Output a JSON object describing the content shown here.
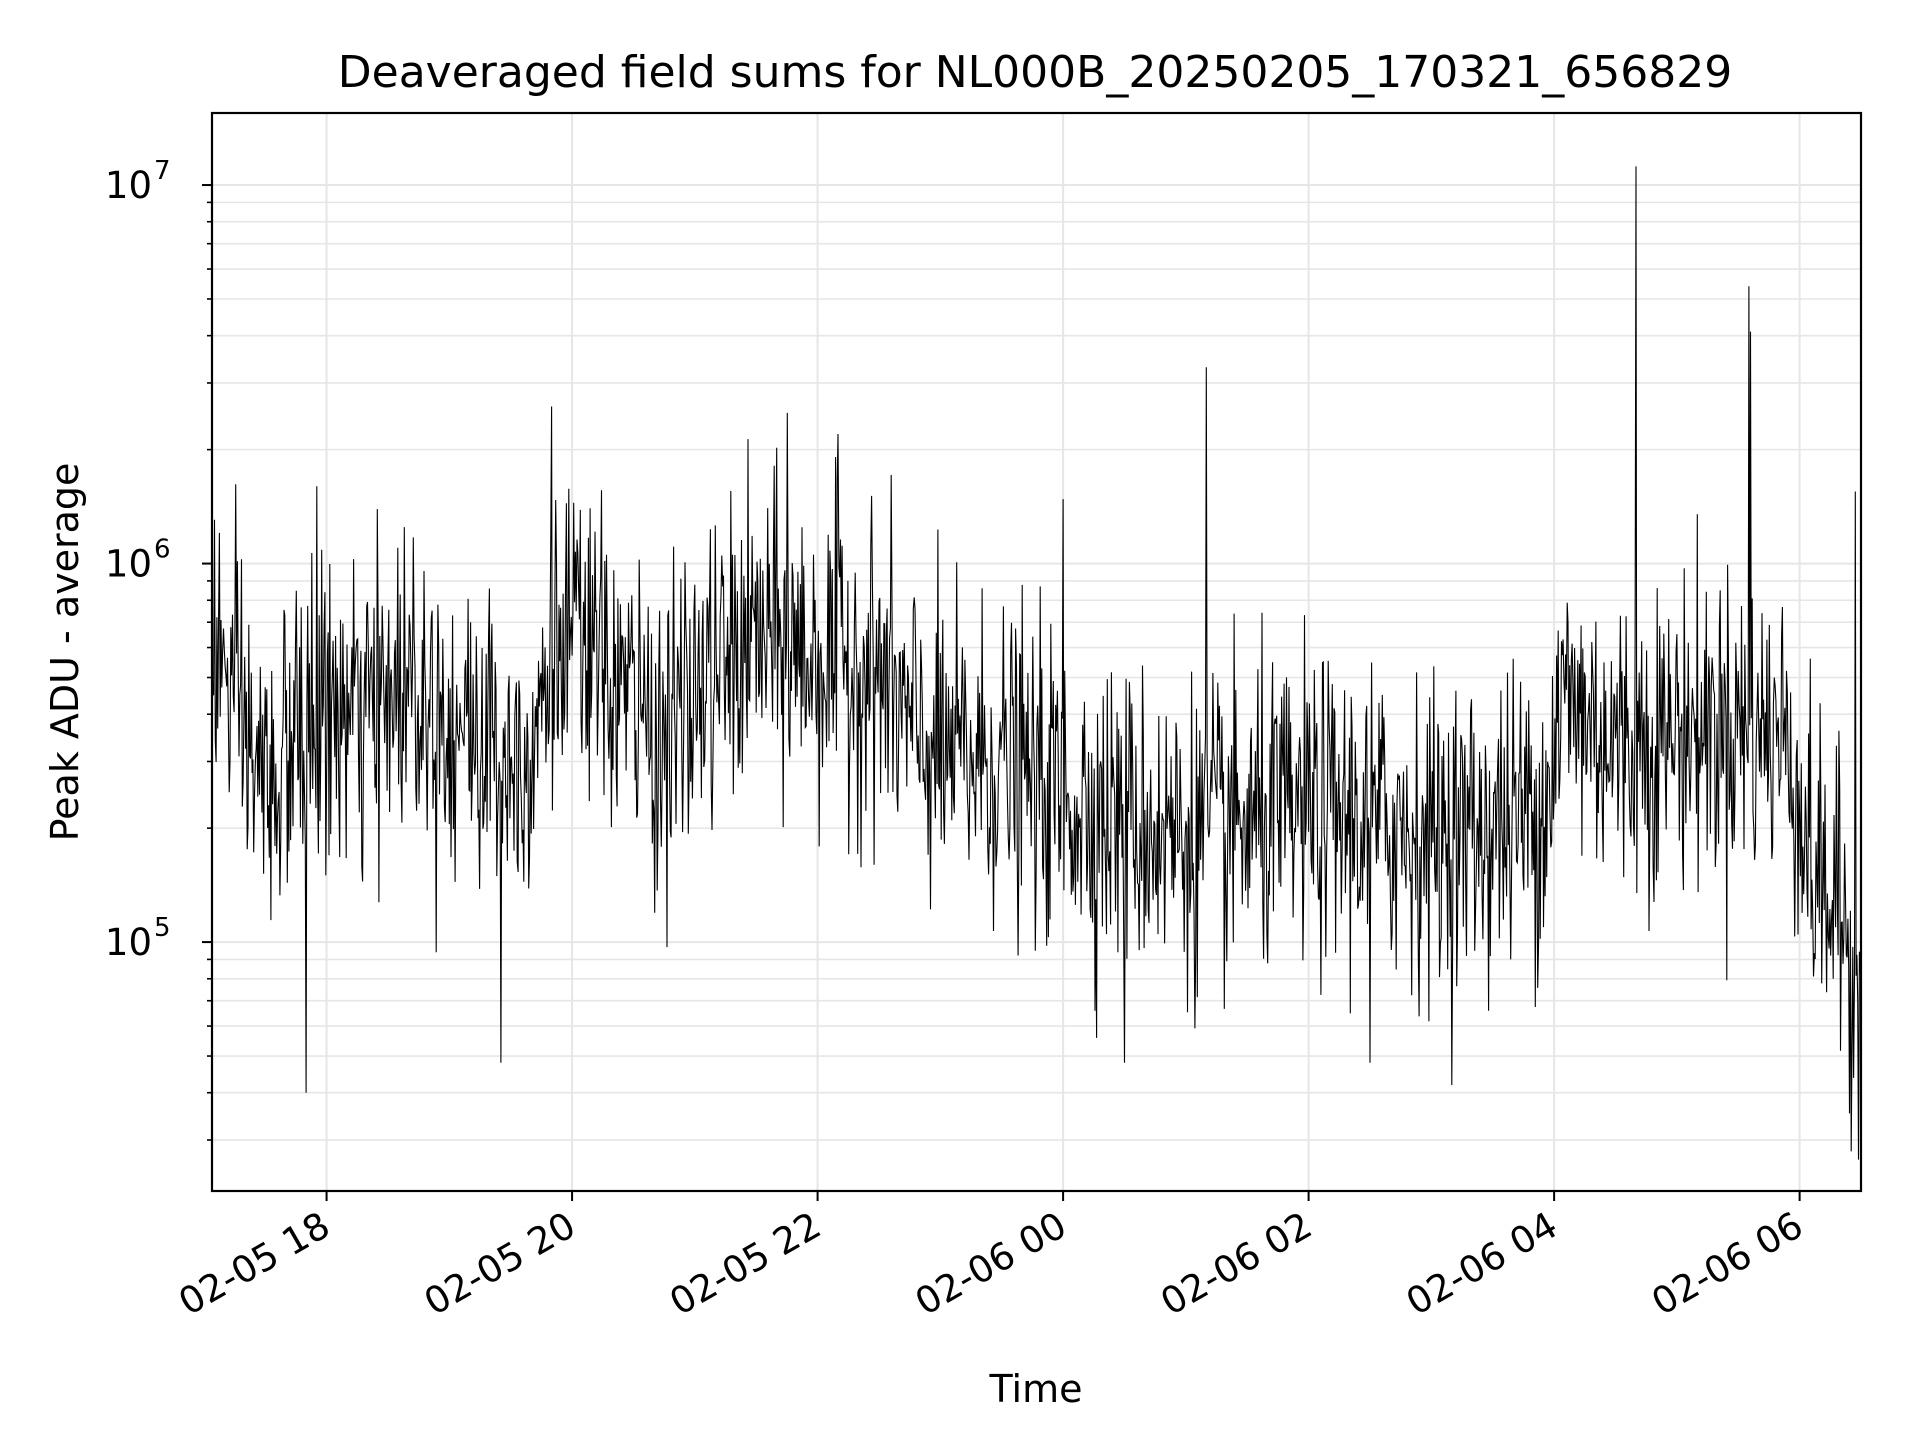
{
  "chart_data": {
    "type": "line",
    "title": "Deaveraged field sums for NL000B_20250205_170321_656829",
    "xlabel": "Time",
    "ylabel": "Peak ADU - average",
    "yscale": "log",
    "ylim": [
      22000,
      15500000
    ],
    "xlim": [
      "2025-02-05 17:04",
      "2025-02-06 06:30"
    ],
    "grid": true,
    "line_color": "#000000",
    "grid_color": "#e6e6e6",
    "x_ticks": [
      "2025-02-05 18:00",
      "2025-02-05 20:00",
      "2025-02-05 22:00",
      "2025-02-06 00:00",
      "2025-02-06 02:00",
      "2025-02-06 04:00",
      "2025-02-06 06:00"
    ],
    "x_tick_labels": [
      "02-05 18",
      "02-05 20",
      "02-05 22",
      "02-06 00",
      "02-06 02",
      "02-06 04",
      "02-06 06"
    ],
    "y_ticks": [
      100000,
      1000000,
      10000000
    ],
    "y_tick_labels": [
      {
        "base": "10",
        "exp": "5"
      },
      {
        "base": "10",
        "exp": "6"
      },
      {
        "base": "10",
        "exp": "7"
      }
    ],
    "series": [
      {
        "sample_interval_min": 0.4,
        "baseline": [
          [
            "2025-02-05 17:04",
            650000
          ],
          [
            "2025-02-05 17:15",
            420000
          ],
          [
            "2025-02-05 17:30",
            250000
          ],
          [
            "2025-02-05 17:45",
            330000
          ],
          [
            "2025-02-05 18:00",
            400000
          ],
          [
            "2025-02-05 18:20",
            380000
          ],
          [
            "2025-02-05 18:40",
            520000
          ],
          [
            "2025-02-05 19:00",
            380000
          ],
          [
            "2025-02-05 19:20",
            340000
          ],
          [
            "2025-02-05 19:35",
            290000
          ],
          [
            "2025-02-05 19:50",
            560000
          ],
          [
            "2025-02-05 20:00",
            640000
          ],
          [
            "2025-02-05 20:30",
            430000
          ],
          [
            "2025-02-05 20:45",
            330000
          ],
          [
            "2025-02-05 21:00",
            450000
          ],
          [
            "2025-02-05 21:30",
            640000
          ],
          [
            "2025-02-05 22:00",
            560000
          ],
          [
            "2025-02-05 22:30",
            520000
          ],
          [
            "2025-02-05 22:45",
            360000
          ],
          [
            "2025-02-05 23:00",
            310000
          ],
          [
            "2025-02-05 23:30",
            300000
          ],
          [
            "2025-02-06 00:00",
            240000
          ],
          [
            "2025-02-06 00:30",
            210000
          ],
          [
            "2025-02-06 01:00",
            190000
          ],
          [
            "2025-02-06 01:30",
            200000
          ],
          [
            "2025-02-06 02:00",
            220000
          ],
          [
            "2025-02-06 02:30",
            210000
          ],
          [
            "2025-02-06 03:00",
            190000
          ],
          [
            "2025-02-06 03:30",
            200000
          ],
          [
            "2025-02-06 03:55",
            230000
          ],
          [
            "2025-02-06 04:05",
            450000
          ],
          [
            "2025-02-06 04:30",
            330000
          ],
          [
            "2025-02-06 05:00",
            360000
          ],
          [
            "2025-02-06 05:30",
            380000
          ],
          [
            "2025-02-06 05:55",
            340000
          ],
          [
            "2025-02-06 06:05",
            160000
          ],
          [
            "2025-02-06 06:30",
            90000
          ]
        ],
        "spikes": [
          [
            "2025-02-05 17:55",
            1600000
          ],
          [
            "2025-02-05 17:50",
            40000
          ],
          [
            "2025-02-05 19:25",
            48000
          ],
          [
            "2025-02-05 19:50",
            2600000
          ],
          [
            "2025-02-05 21:45",
            2500000
          ],
          [
            "2025-02-05 22:10",
            2200000
          ],
          [
            "2025-02-06 00:00",
            1480000
          ],
          [
            "2025-02-06 01:10",
            3300000
          ],
          [
            "2025-02-06 00:30",
            48000
          ],
          [
            "2025-02-06 02:30",
            48000
          ],
          [
            "2025-02-06 04:40",
            11200000
          ],
          [
            "2025-02-06 05:35",
            5400000
          ],
          [
            "2025-02-06 05:36",
            4100000
          ],
          [
            "2025-02-06 06:25",
            28000
          ],
          [
            "2025-02-06 06:27",
            1550000
          ]
        ]
      }
    ]
  }
}
